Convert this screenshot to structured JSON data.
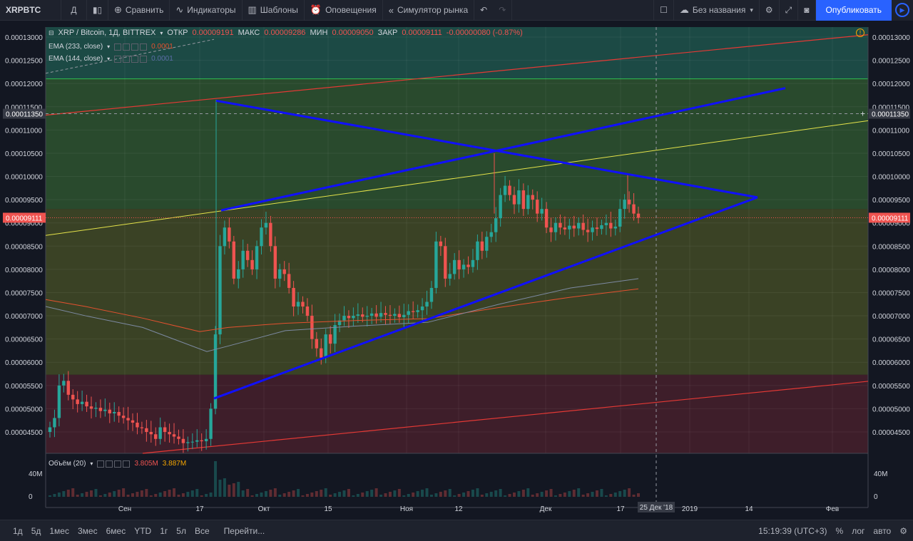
{
  "toolbar": {
    "symbol": "XRPBTC",
    "interval": "Д",
    "compare": "Сравнить",
    "indicators": "Индикаторы",
    "templates": "Шаблоны",
    "alerts": "Оповещения",
    "replay": "Симулятор рынка",
    "layout_name": "Без названия",
    "publish": "Опубликовать"
  },
  "legend": {
    "title": "XRP / Bitcoin, 1Д, BITTREX",
    "open_label": "ОТКР",
    "open": "0.00009191",
    "high_label": "МАКС",
    "high": "0.00009286",
    "low_label": "МИН",
    "low": "0.00009050",
    "close_label": "ЗАКР",
    "close": "0.00009111",
    "change": "-0.00000080 (-0.87%)",
    "ema1": "EMA (233, close)",
    "ema1_val": "0.0001",
    "ema2": "EMA (144, close)",
    "ema2_val": "0.0001",
    "volume": "Объём (20)",
    "vol_val1": "3.805M",
    "vol_val2": "3.887M"
  },
  "colors": {
    "background": "#131722",
    "up": "#26a69a",
    "down": "#ef5350",
    "trendline": "#1010ff",
    "ema233": "#e5512f",
    "ema144": "#7d8aa3",
    "zone_top": "#1c4a45",
    "zone_mid": "#294a2d",
    "zone_low": "#3a4225",
    "zone_bottom": "#3e1e2a"
  },
  "price_axis": {
    "ticks": [
      "0.00013000",
      "0.00012500",
      "0.00012000",
      "0.00011500",
      "0.00011000",
      "0.00010500",
      "0.00010000",
      "0.00009500",
      "0.00009000",
      "0.00008500",
      "0.00008000",
      "0.00007500",
      "0.00007000",
      "0.00006500",
      "0.00006000",
      "0.00005500",
      "0.00005000",
      "0.00004500"
    ],
    "crosshair_price": "0.00011350",
    "last_price": "0.00009111"
  },
  "volume_axis": {
    "ticks": [
      "40M",
      "0"
    ]
  },
  "time_axis": {
    "labels": [
      "Сен",
      "17",
      "Окт",
      "15",
      "Ноя",
      "12",
      "Дек",
      "17",
      "2019",
      "14",
      "Фев"
    ],
    "crosshair_date": "25 Дек '18"
  },
  "bottombar": {
    "ranges": [
      "1д",
      "5д",
      "1мес",
      "3мес",
      "6мес",
      "YTD",
      "1г",
      "5л",
      "Все"
    ],
    "goto": "Перейти...",
    "time": "15:19:39 (UTC+3)",
    "percent": "%",
    "log": "лог",
    "auto": "авто"
  },
  "chart_data": {
    "type": "candlestick",
    "title": "XRP / Bitcoin, 1Д, BITTREX",
    "ylim": [
      4e-05,
      0.000132
    ],
    "annotations": [
      "ascending triangle trendlines (blue)",
      "upper and lower channel lines (red)",
      "yellow trendline",
      "horizontal zones"
    ]
  }
}
